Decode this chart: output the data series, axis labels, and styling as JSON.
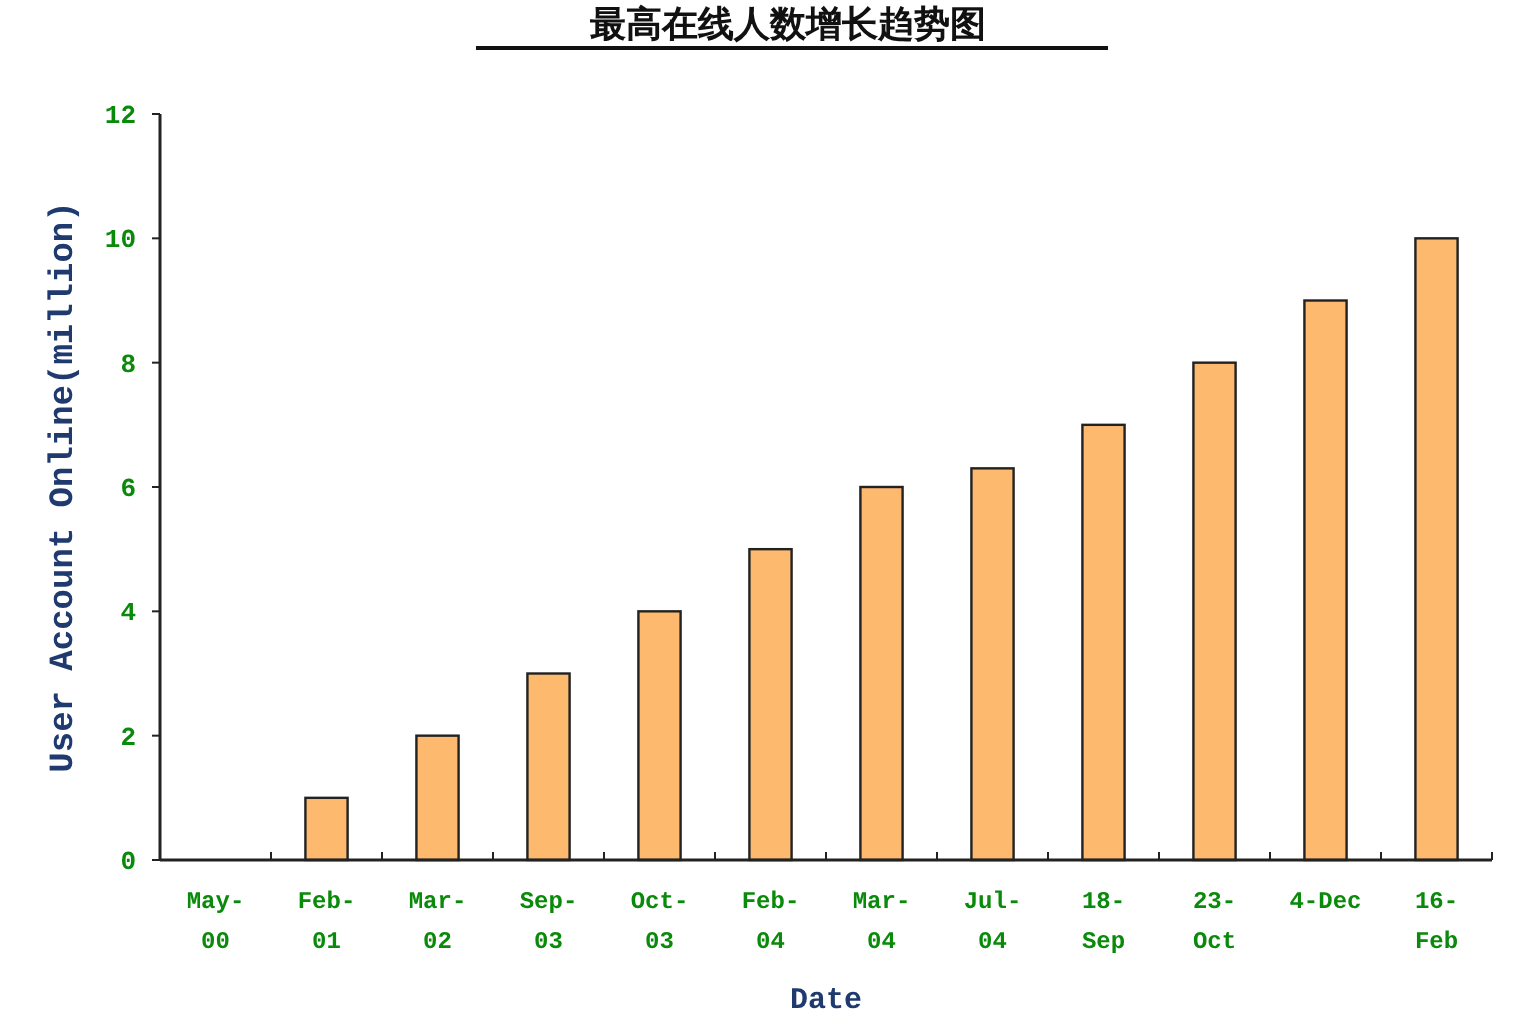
{
  "chart_data": {
    "type": "bar",
    "title": "最高在线人数增长趋势图",
    "xlabel": "Date",
    "ylabel": "User Account Online(million)",
    "categories": [
      "May-00",
      "Feb-01",
      "Mar-02",
      "Sep-03",
      "Oct-03",
      "Feb-04",
      "Mar-04",
      "Jul-04",
      "18-Sep",
      "23-Oct",
      "4-Dec",
      "16-Feb"
    ],
    "values": [
      0,
      1,
      2,
      3,
      4,
      5,
      6,
      6.3,
      7,
      8,
      9,
      10
    ],
    "color": "#fdb96e",
    "ylim": [
      0,
      12
    ],
    "yticks": [
      0,
      2,
      4,
      6,
      8,
      10,
      12
    ],
    "grid": false
  }
}
